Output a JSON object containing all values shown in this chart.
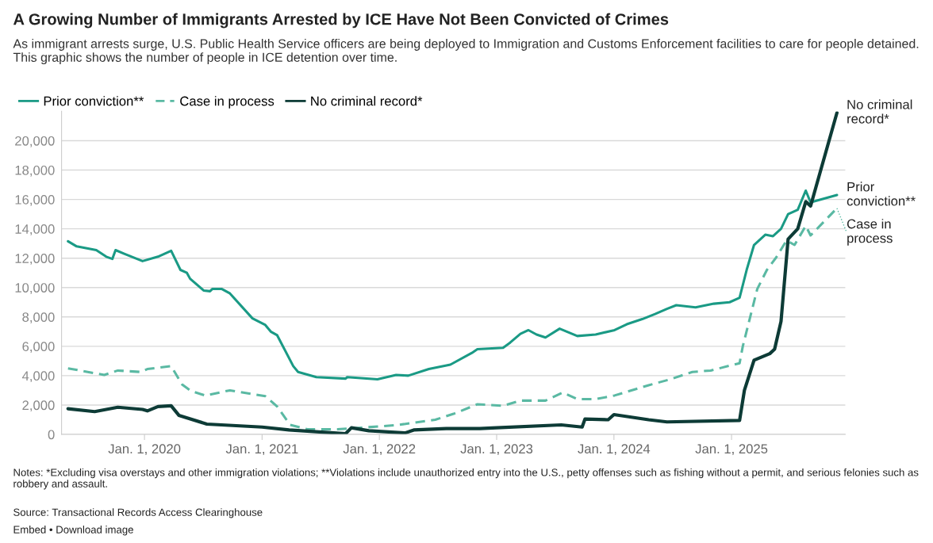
{
  "chart_data": {
    "type": "line",
    "title": "A Growing Number of Immigrants Arrested by ICE Have Not Been Convicted of Crimes",
    "subtitle": "As immigrant arrests surge, U.S. Public Health Service officers are being deployed to Immigration and Customs Enforcement facilities to care for people detained. This graphic shows the number of people in ICE detention over time.",
    "annotations": [
      "Notes: *Excluding visa overstays and other immigration violations; **Violations include unauthorized entry into the U.S., petty offenses such as fishing without a permit, and serious felonies such as robbery and assault.",
      "Source: Transactional Records Access Clearinghouse",
      "Embed • Download image"
    ],
    "xlim": [
      "2019-04-18",
      "2025-12-21"
    ],
    "xticks": [
      {
        "value": "2020-01-01",
        "label": "Jan. 1, 2020"
      },
      {
        "value": "2021-01-01",
        "label": "Jan. 1, 2021"
      },
      {
        "value": "2022-01-01",
        "label": "Jan. 1, 2022"
      },
      {
        "value": "2023-01-01",
        "label": "Jan. 1, 2023"
      },
      {
        "value": "2024-01-01",
        "label": "Jan. 1, 2024"
      },
      {
        "value": "2025-01-01",
        "label": "Jan. 1, 2025"
      }
    ],
    "ylim": [
      0,
      22000
    ],
    "yticks": [
      {
        "value": 0,
        "label": "0"
      },
      {
        "value": 2000,
        "label": "2,000"
      },
      {
        "value": 4000,
        "label": "4,000"
      },
      {
        "value": 6000,
        "label": "6,000"
      },
      {
        "value": 8000,
        "label": "8,000"
      },
      {
        "value": 10000,
        "label": "10,000"
      },
      {
        "value": 12000,
        "label": "12,000"
      },
      {
        "value": 14000,
        "label": "14,000"
      },
      {
        "value": 16000,
        "label": "16,000"
      },
      {
        "value": 18000,
        "label": "18,000"
      },
      {
        "value": 20000,
        "label": "20,000"
      }
    ],
    "grid": "y",
    "legend": "top left",
    "marker": "none",
    "series": [
      {
        "name": "Prior conviction**",
        "color": "#1a9a85",
        "line_style": "solid",
        "x": [
          "2019-05-08",
          "2019-06-04",
          "2019-08-04",
          "2019-09-04",
          "2019-09-23",
          "2019-10-03",
          "2019-10-30",
          "2019-12-26",
          "2020-02-12",
          "2020-03-24",
          "2020-04-22",
          "2020-05-12",
          "2020-05-22",
          "2020-07-03",
          "2020-07-23",
          "2020-07-30",
          "2020-08-29",
          "2020-09-23",
          "2020-12-02",
          "2021-01-11",
          "2021-01-28",
          "2021-02-17",
          "2021-04-08",
          "2021-04-23",
          "2021-06-19",
          "2021-09-18",
          "2021-09-23",
          "2021-12-26",
          "2022-02-22",
          "2022-04-01",
          "2022-06-04",
          "2022-08-10",
          "2022-10-16",
          "2022-11-02",
          "2023-01-21",
          "2023-02-12",
          "2023-03-16",
          "2023-04-10",
          "2023-05-05",
          "2023-06-02",
          "2023-07-16",
          "2023-09-09",
          "2023-11-05",
          "2024-01-03",
          "2024-02-10",
          "2024-03-29",
          "2024-05-08",
          "2024-06-14",
          "2024-07-13",
          "2024-09-11",
          "2024-11-07",
          "2024-12-26",
          "2025-01-26",
          "2025-02-17",
          "2025-03-12",
          "2025-04-16",
          "2025-05-10",
          "2025-06-04",
          "2025-06-26",
          "2025-07-26",
          "2025-08-20",
          "2025-09-04",
          "2025-11-25"
        ],
        "values": [
          13150,
          12800,
          12550,
          12100,
          11950,
          12550,
          12300,
          11800,
          12100,
          12500,
          11200,
          11000,
          10600,
          9800,
          9750,
          9900,
          9900,
          9600,
          7900,
          7450,
          7000,
          6750,
          4650,
          4250,
          3900,
          3800,
          3900,
          3750,
          4050,
          4000,
          4450,
          4750,
          5550,
          5800,
          5900,
          6250,
          6850,
          7100,
          6800,
          6600,
          7200,
          6700,
          6800,
          7100,
          7500,
          7850,
          8200,
          8550,
          8800,
          8650,
          8900,
          9000,
          9300,
          11200,
          12900,
          13600,
          13500,
          14000,
          15000,
          15300,
          16600,
          15800,
          16300
        ]
      },
      {
        "name": "Case in process",
        "color": "#5ab9a3",
        "line_style": "dashed",
        "x": [
          "2019-05-08",
          "2019-08-29",
          "2019-10-10",
          "2019-12-21",
          "2020-01-10",
          "2020-03-24",
          "2020-04-27",
          "2020-05-25",
          "2020-07-08",
          "2020-09-23",
          "2021-01-11",
          "2021-02-17",
          "2021-03-29",
          "2021-05-22",
          "2021-08-24",
          "2022-01-06",
          "2022-03-02",
          "2022-06-24",
          "2022-08-20",
          "2022-11-02",
          "2023-01-21",
          "2023-03-16",
          "2023-06-02",
          "2023-07-26",
          "2023-09-09",
          "2023-11-05",
          "2024-01-03",
          "2024-04-18",
          "2024-06-24",
          "2024-09-01",
          "2024-10-28",
          "2025-01-26",
          "2025-02-05",
          "2025-03-22",
          "2025-04-21",
          "2025-05-20",
          "2025-06-21",
          "2025-07-16",
          "2025-08-20",
          "2025-09-04",
          "2025-10-03",
          "2025-11-25"
        ],
        "values": [
          4500,
          4050,
          4350,
          4250,
          4450,
          4650,
          3400,
          2950,
          2650,
          3000,
          2600,
          1900,
          650,
          350,
          350,
          550,
          650,
          1000,
          1400,
          2050,
          1950,
          2300,
          2300,
          2850,
          2400,
          2400,
          2650,
          3350,
          3750,
          4250,
          4350,
          4850,
          6000,
          9900,
          11200,
          12050,
          13200,
          12900,
          14200,
          13550,
          14200,
          15400
        ]
      },
      {
        "name": "No criminal record*",
        "color": "#0d3b36",
        "line_style": "solid",
        "x": [
          "2019-05-08",
          "2019-07-30",
          "2019-10-10",
          "2019-12-26",
          "2020-01-10",
          "2020-02-12",
          "2020-03-24",
          "2020-04-17",
          "2020-07-13",
          "2021-01-01",
          "2021-03-26",
          "2021-09-18",
          "2021-10-06",
          "2021-11-29",
          "2022-03-22",
          "2022-04-18",
          "2022-07-28",
          "2022-11-10",
          "2023-01-01",
          "2023-07-21",
          "2023-09-24",
          "2023-10-03",
          "2023-12-14",
          "2024-01-01",
          "2024-04-18",
          "2024-06-14",
          "2025-01-26",
          "2025-02-10",
          "2025-03-12",
          "2025-04-30",
          "2025-05-15",
          "2025-06-04",
          "2025-06-26",
          "2025-07-26",
          "2025-08-20",
          "2025-09-04",
          "2025-11-25"
        ],
        "values": [
          1750,
          1550,
          1850,
          1700,
          1600,
          1900,
          1950,
          1300,
          700,
          500,
          300,
          50,
          450,
          250,
          100,
          300,
          400,
          400,
          450,
          650,
          500,
          1050,
          1000,
          1350,
          1000,
          850,
          950,
          3000,
          5050,
          5500,
          5800,
          7700,
          13300,
          14000,
          15850,
          15550,
          21900
        ]
      }
    ]
  }
}
